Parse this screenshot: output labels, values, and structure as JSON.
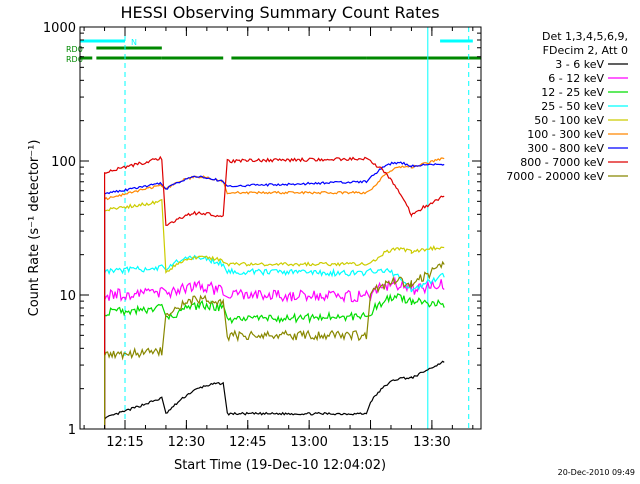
{
  "chart_data": {
    "type": "line",
    "title": "HESSI Observing Summary Count Rates",
    "xlabel": "Start Time (19-Dec-10 12:04:02)",
    "ylabel": "Count Rate (s⁻¹ detector⁻¹)",
    "footer": "20-Dec-2010 09:49",
    "y_scale": "log",
    "ylim": [
      1,
      1000
    ],
    "xlim": [
      "12:04",
      "13:42"
    ],
    "x_ticks": [
      "12:15",
      "12:30",
      "12:45",
      "13:00",
      "13:15",
      "13:30"
    ],
    "y_ticks": [
      "1",
      "10",
      "100",
      "1000"
    ],
    "legend": {
      "placement": "right",
      "header": [
        "Det 1,3,4,5,6,9,",
        "FDecim 2, Att 0"
      ],
      "entries": [
        {
          "label": "3 - 6 keV",
          "color": "#000000"
        },
        {
          "label": "6 - 12 keV",
          "color": "#ff00ff"
        },
        {
          "label": "12 - 25 keV",
          "color": "#00dd00"
        },
        {
          "label": "25 - 50 keV",
          "color": "#00ffff"
        },
        {
          "label": "50 - 100 keV",
          "color": "#cccc00"
        },
        {
          "label": "100 - 300 keV",
          "color": "#ff8800"
        },
        {
          "label": "300 - 800 keV",
          "color": "#0000ff"
        },
        {
          "label": "800 - 7000 keV",
          "color": "#dd0000"
        },
        {
          "label": "7000 - 20000 keV",
          "color": "#888800"
        }
      ]
    },
    "flags": [
      {
        "label": "N",
        "color": "#00ffff",
        "segments": [
          [
            "12:04",
            "12:15"
          ],
          [
            "13:32",
            "13:40"
          ]
        ]
      },
      {
        "label": "RD0",
        "color": "#008800",
        "segments": [
          [
            "12:08",
            "12:24"
          ]
        ]
      },
      {
        "label": "RD6",
        "color": "#008800",
        "segments": [
          [
            "12:04",
            "12:07"
          ],
          [
            "12:08",
            "12:24"
          ],
          [
            "12:24",
            "12:39"
          ],
          [
            "12:41",
            "13:14"
          ],
          [
            "13:14",
            "13:42"
          ]
        ]
      }
    ],
    "vlines": [
      {
        "x": "12:04",
        "style": "solid",
        "color": "#00ffff"
      },
      {
        "x": "12:15",
        "style": "dashed",
        "color": "#00ffff"
      },
      {
        "x": "13:29",
        "style": "solid",
        "color": "#00ffff"
      },
      {
        "x": "13:39",
        "style": "dashed",
        "color": "#00ffff"
      }
    ],
    "x_points": [
      "12:10",
      "12:24",
      "12:25",
      "12:39",
      "12:40",
      "13:14",
      "13:15",
      "13:25",
      "13:33"
    ],
    "series": [
      {
        "name": "3 - 6 keV",
        "color": "#000000",
        "values": [
          1.2,
          1.7,
          1.3,
          2.2,
          1.3,
          1.3,
          1.6,
          2.4,
          3.2
        ]
      },
      {
        "name": "6 - 12 keV",
        "color": "#ff00ff",
        "values": [
          10,
          10.5,
          10,
          10.5,
          10,
          9.8,
          10,
          11,
          12
        ]
      },
      {
        "name": "12 - 25 keV",
        "color": "#00dd00",
        "values": [
          7.5,
          8,
          6.5,
          8,
          6.5,
          7,
          7.5,
          9,
          8.5
        ]
      },
      {
        "name": "25 - 50 keV",
        "color": "#00ffff",
        "values": [
          15,
          16,
          16,
          17,
          15,
          14.5,
          15,
          11,
          14
        ]
      },
      {
        "name": "50 - 100 keV",
        "color": "#cccc00",
        "values": [
          43,
          50,
          15,
          18,
          17,
          17,
          17,
          21,
          23
        ]
      },
      {
        "name": "100 - 300 keV",
        "color": "#ff8800",
        "values": [
          52,
          66,
          62,
          70,
          58,
          58,
          60,
          90,
          105
        ]
      },
      {
        "name": "300 - 800 keV",
        "color": "#0000ff",
        "values": [
          57,
          68,
          62,
          70,
          65,
          70,
          75,
          92,
          95
        ]
      },
      {
        "name": "800 - 7000 keV",
        "color": "#dd0000",
        "values": [
          82,
          105,
          33,
          38,
          100,
          104,
          100,
          40,
          55
        ]
      },
      {
        "name": "7000 - 20000 keV",
        "color": "#888800",
        "values": [
          3.5,
          3.8,
          7,
          9,
          5,
          5,
          10,
          12,
          17
        ]
      }
    ]
  }
}
